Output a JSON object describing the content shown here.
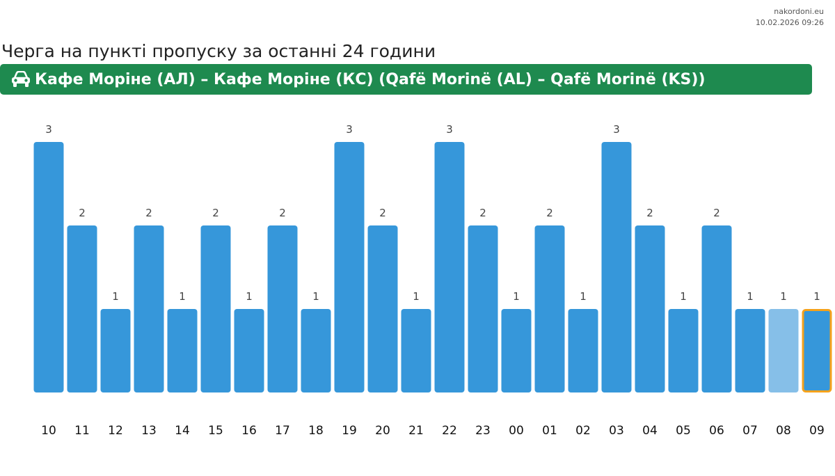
{
  "meta": {
    "site": "nakordoni.eu",
    "timestamp": "10.02.2026 09:26"
  },
  "page_title": "Черга на пункті пропуску за останні 24 години",
  "route": {
    "icon": "car-icon",
    "label": "Кафе Моріне (АЛ) – Кафе Моріне (КС) (Qafë Morinë (AL) – Qafë Morinë (KS))"
  },
  "colors": {
    "bar": "#3697da",
    "bar_forecast": "#86bfe8",
    "current_outline": "#f5a21b",
    "banner": "#1e8a4f",
    "label_value": "#444444",
    "label_axis": "#111111"
  },
  "chart_data": {
    "type": "bar",
    "categories": [
      "10",
      "11",
      "12",
      "13",
      "14",
      "15",
      "16",
      "17",
      "18",
      "19",
      "20",
      "21",
      "22",
      "23",
      "00",
      "01",
      "02",
      "03",
      "04",
      "05",
      "06",
      "07",
      "08",
      "09"
    ],
    "values": [
      3,
      2,
      1,
      2,
      1,
      2,
      1,
      2,
      1,
      3,
      2,
      1,
      3,
      2,
      1,
      2,
      1,
      3,
      2,
      1,
      2,
      1,
      1,
      1
    ],
    "lighter_bar_index": 22,
    "highlighted_bar_index": 23,
    "ylim": [
      0,
      3
    ],
    "grid": false,
    "legend": "none",
    "title": "",
    "xlabel": "",
    "ylabel": ""
  }
}
